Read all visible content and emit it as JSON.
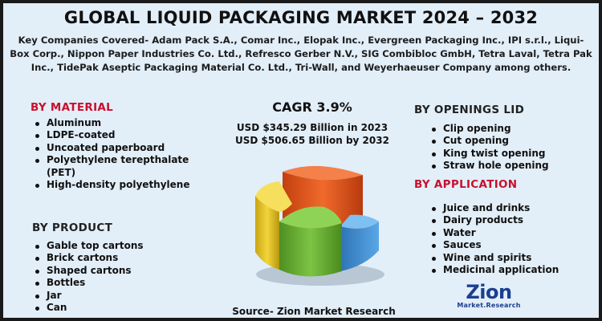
{
  "title": "GLOBAL LIQUID PACKAGING MARKET 2024 – 2032",
  "companies_text": "Key Companies Covered- Adam Pack S.A., Comar Inc., Elopak Inc., Evergreen Packaging Inc., IPI s.r.l., Liqui-Box Corp., Nippon Paper Industries Co. Ltd., Refresco Gerber N.V., SIG Combibloc GmbH, Tetra Laval, Tetra Pak Inc., TidePak Aseptic Packaging Material Co. Ltd., Tri-Wall, and Weyerhaeuser Company among others.",
  "material": {
    "heading": "BY MATERIAL",
    "items": [
      "Aluminum",
      "LDPE-coated",
      "Uncoated paperboard",
      "Polyethylene terepthalate (PET)",
      "High-density polyethylene"
    ]
  },
  "product": {
    "heading": "BY PRODUCT",
    "items": [
      "Gable top cartons",
      "Brick cartons",
      "Shaped cartons",
      "Bottles",
      "Jar",
      "Can"
    ]
  },
  "openings": {
    "heading": "BY OPENINGS LID",
    "items": [
      "Clip opening",
      "Cut opening",
      "King twist opening",
      "Straw hole opening"
    ]
  },
  "application": {
    "heading": "BY APPLICATION",
    "items": [
      "Juice and drinks",
      "Dairy products",
      "Water",
      "Sauces",
      "Wine and spirits",
      "Medicinal application"
    ]
  },
  "cagr": "CAGR 3.9%",
  "value_2023": "USD $345.29 Billion in 2023",
  "value_2032": "USD $506.65 Billion by 2032",
  "source": "Source- Zion Market Research",
  "logo": {
    "name": "Zion",
    "sub": "Market.Research"
  },
  "colors": {
    "background": "#e2eef8",
    "heading_red": "#c8102e",
    "logo_blue": "#1b3f8f",
    "slice_orange": "#e85a23",
    "slice_blue": "#3f8fd1",
    "slice_green": "#6db23b",
    "slice_yellow": "#e9c82a"
  }
}
